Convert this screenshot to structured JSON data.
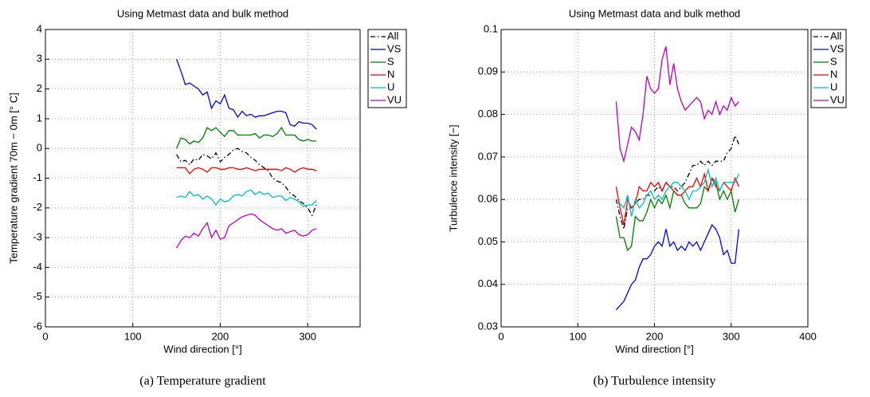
{
  "chart_data": [
    {
      "type": "line",
      "title": "Using Metmast data and bulk method",
      "xlabel": "Wind direction [°]",
      "ylabel": "Temperature gradient 70m − 0m [° C]",
      "caption": "(a) Temperature gradient",
      "xlim": [
        0,
        360
      ],
      "xticks": [
        0,
        100,
        200,
        300
      ],
      "ylim": [
        -6,
        4
      ],
      "yticks": [
        -6,
        -5,
        -4,
        -3,
        -2,
        -1,
        0,
        1,
        2,
        3,
        4
      ],
      "grid": true,
      "legend": "outside-right",
      "x": [
        150,
        155,
        160,
        165,
        170,
        175,
        180,
        185,
        190,
        195,
        200,
        205,
        210,
        215,
        220,
        225,
        230,
        235,
        240,
        245,
        250,
        255,
        260,
        265,
        270,
        275,
        280,
        285,
        290,
        295,
        300,
        305,
        310
      ],
      "series": [
        {
          "name": "All",
          "color": "#000000",
          "dash": "dashdot",
          "values": [
            -0.2,
            -0.45,
            -0.4,
            -0.55,
            -0.35,
            -0.4,
            -0.2,
            -0.25,
            -0.35,
            -0.15,
            -0.45,
            -0.3,
            -0.2,
            -0.05,
            0.0,
            -0.1,
            -0.15,
            -0.3,
            -0.4,
            -0.55,
            -0.65,
            -0.75,
            -1.0,
            -1.1,
            -1.15,
            -1.3,
            -1.5,
            -1.6,
            -1.75,
            -1.85,
            -2.0,
            -2.25,
            -1.9
          ]
        },
        {
          "name": "VS",
          "color": "#0000ff",
          "values": [
            3.0,
            2.6,
            2.15,
            2.2,
            2.1,
            2.0,
            1.8,
            1.9,
            1.35,
            1.6,
            1.5,
            1.8,
            1.35,
            1.3,
            1.05,
            1.25,
            1.1,
            1.15,
            1.05,
            1.1,
            1.1,
            1.15,
            1.2,
            1.25,
            1.25,
            1.2,
            0.8,
            0.75,
            0.9,
            0.85,
            0.85,
            0.8,
            0.65
          ]
        },
        {
          "name": "S",
          "color": "#008000",
          "values": [
            0.0,
            0.35,
            0.3,
            0.15,
            0.25,
            0.2,
            0.35,
            0.7,
            0.6,
            0.7,
            0.55,
            0.4,
            0.6,
            0.6,
            0.45,
            0.45,
            0.45,
            0.45,
            0.5,
            0.35,
            0.45,
            0.45,
            0.4,
            0.5,
            0.7,
            0.45,
            0.45,
            0.45,
            0.3,
            0.25,
            0.3,
            0.25,
            0.25
          ]
        },
        {
          "name": "N",
          "color": "#ff0000",
          "values": [
            -0.65,
            -0.65,
            -0.65,
            -0.85,
            -0.7,
            -0.65,
            -0.7,
            -0.8,
            -0.65,
            -0.65,
            -0.7,
            -0.7,
            -0.65,
            -0.65,
            -0.7,
            -0.7,
            -0.65,
            -0.7,
            -0.75,
            -0.7,
            -0.7,
            -0.7,
            -0.7,
            -0.7,
            -0.75,
            -0.65,
            -0.7,
            -0.8,
            -0.7,
            -0.65,
            -0.7,
            -0.7,
            -0.75
          ]
        },
        {
          "name": "U",
          "color": "#00bfbf",
          "values": [
            -1.65,
            -1.6,
            -1.65,
            -1.45,
            -1.6,
            -1.55,
            -1.7,
            -1.6,
            -1.7,
            -1.9,
            -1.7,
            -1.8,
            -1.75,
            -1.6,
            -1.55,
            -1.6,
            -1.45,
            -1.4,
            -1.55,
            -1.45,
            -1.55,
            -1.5,
            -1.65,
            -1.6,
            -1.6,
            -1.75,
            -1.65,
            -1.7,
            -1.8,
            -1.95,
            -1.9,
            -1.9,
            -1.75
          ]
        },
        {
          "name": "VU",
          "color": "#bf00bf",
          "values": [
            -3.35,
            -3.1,
            -2.95,
            -3.0,
            -2.85,
            -2.95,
            -2.7,
            -2.5,
            -3.0,
            -2.75,
            -3.05,
            -3.0,
            -2.6,
            -2.5,
            -2.4,
            -2.3,
            -2.25,
            -2.2,
            -2.25,
            -2.4,
            -2.5,
            -2.6,
            -2.7,
            -2.75,
            -2.7,
            -2.85,
            -2.8,
            -2.75,
            -2.9,
            -2.95,
            -2.9,
            -2.75,
            -2.7
          ]
        }
      ]
    },
    {
      "type": "line",
      "title": "Using Metmast data and bulk method",
      "xlabel": "Wind direction [°]",
      "ylabel": "Turbulence intensity [−]",
      "caption": "(b) Turbulence intensity",
      "xlim": [
        0,
        400
      ],
      "xticks": [
        0,
        100,
        200,
        300,
        400
      ],
      "ylim": [
        0.03,
        0.1
      ],
      "yticks": [
        0.03,
        0.04,
        0.05,
        0.06,
        0.07,
        0.08,
        0.09,
        0.1
      ],
      "grid": true,
      "legend": "outside-right",
      "x": [
        150,
        155,
        160,
        165,
        170,
        175,
        180,
        185,
        190,
        195,
        200,
        205,
        210,
        215,
        220,
        225,
        230,
        235,
        240,
        245,
        250,
        255,
        260,
        265,
        270,
        275,
        280,
        285,
        290,
        295,
        300,
        305,
        310
      ],
      "series": [
        {
          "name": "All",
          "color": "#000000",
          "dash": "dashdot",
          "values": [
            0.06,
            0.056,
            0.053,
            0.058,
            0.058,
            0.059,
            0.06,
            0.06,
            0.061,
            0.061,
            0.062,
            0.063,
            0.062,
            0.064,
            0.063,
            0.063,
            0.062,
            0.063,
            0.064,
            0.066,
            0.068,
            0.068,
            0.069,
            0.068,
            0.069,
            0.068,
            0.069,
            0.069,
            0.069,
            0.071,
            0.072,
            0.075,
            0.073
          ]
        },
        {
          "name": "VS",
          "color": "#0000ff",
          "values": [
            0.034,
            0.035,
            0.036,
            0.038,
            0.04,
            0.041,
            0.044,
            0.046,
            0.046,
            0.047,
            0.049,
            0.05,
            0.049,
            0.053,
            0.049,
            0.05,
            0.048,
            0.049,
            0.048,
            0.05,
            0.049,
            0.05,
            0.048,
            0.05,
            0.052,
            0.054,
            0.053,
            0.051,
            0.047,
            0.048,
            0.045,
            0.045,
            0.053
          ]
        },
        {
          "name": "S",
          "color": "#008000",
          "values": [
            0.056,
            0.051,
            0.051,
            0.048,
            0.049,
            0.056,
            0.055,
            0.055,
            0.057,
            0.06,
            0.058,
            0.06,
            0.059,
            0.061,
            0.058,
            0.062,
            0.061,
            0.061,
            0.059,
            0.058,
            0.058,
            0.058,
            0.059,
            0.063,
            0.062,
            0.065,
            0.064,
            0.06,
            0.062,
            0.06,
            0.062,
            0.057,
            0.06
          ]
        },
        {
          "name": "N",
          "color": "#ff0000",
          "values": [
            0.063,
            0.058,
            0.054,
            0.06,
            0.058,
            0.059,
            0.063,
            0.062,
            0.062,
            0.064,
            0.063,
            0.064,
            0.062,
            0.064,
            0.063,
            0.062,
            0.061,
            0.061,
            0.062,
            0.063,
            0.063,
            0.065,
            0.063,
            0.066,
            0.062,
            0.065,
            0.063,
            0.062,
            0.064,
            0.063,
            0.062,
            0.065,
            0.063
          ]
        },
        {
          "name": "U",
          "color": "#00bfbf",
          "values": [
            0.059,
            0.059,
            0.058,
            0.061,
            0.056,
            0.06,
            0.058,
            0.059,
            0.061,
            0.062,
            0.06,
            0.061,
            0.06,
            0.062,
            0.063,
            0.064,
            0.064,
            0.063,
            0.062,
            0.06,
            0.062,
            0.062,
            0.063,
            0.064,
            0.067,
            0.063,
            0.065,
            0.062,
            0.064,
            0.064,
            0.064,
            0.064,
            0.066
          ]
        },
        {
          "name": "VU",
          "color": "#bf00bf",
          "values": [
            0.083,
            0.072,
            0.069,
            0.073,
            0.077,
            0.076,
            0.074,
            0.08,
            0.089,
            0.086,
            0.085,
            0.086,
            0.093,
            0.096,
            0.087,
            0.092,
            0.086,
            0.083,
            0.081,
            0.082,
            0.083,
            0.084,
            0.083,
            0.079,
            0.081,
            0.08,
            0.083,
            0.08,
            0.082,
            0.081,
            0.084,
            0.082,
            0.083
          ]
        }
      ]
    }
  ]
}
